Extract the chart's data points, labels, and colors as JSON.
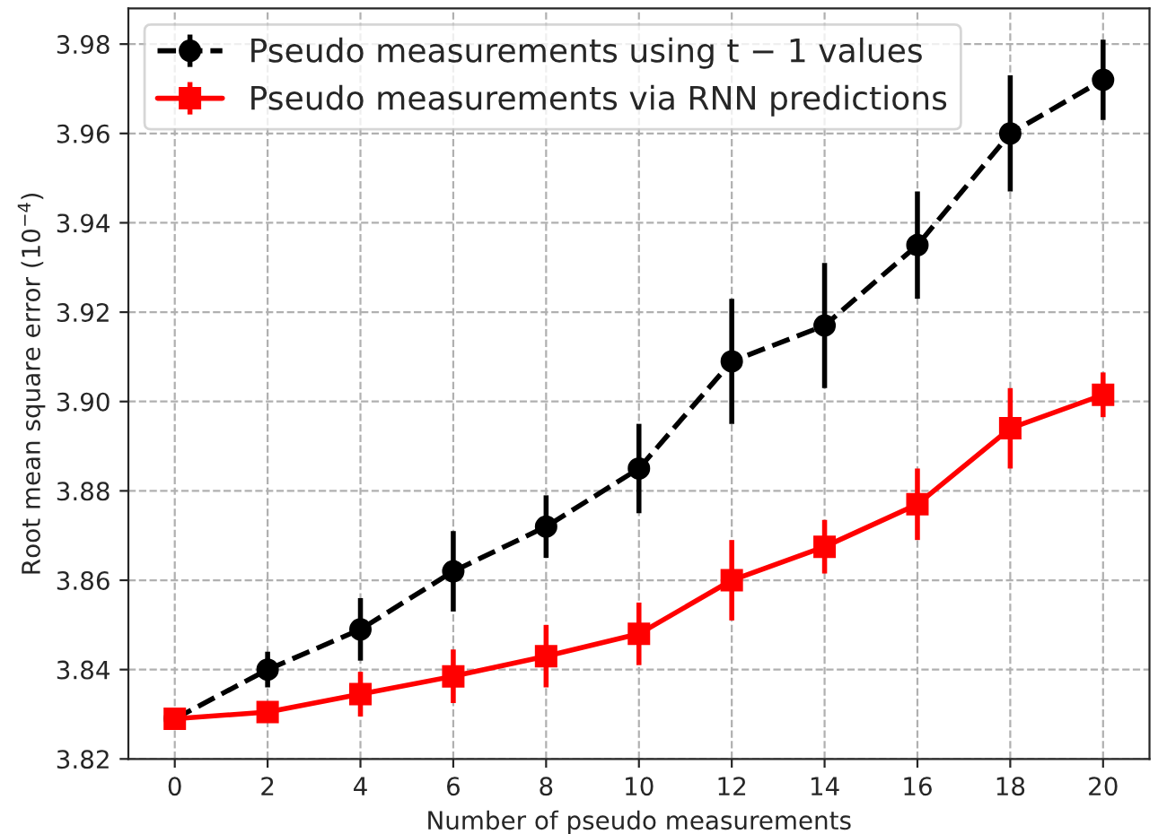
{
  "chart_data": {
    "type": "line",
    "xlabel": "Number of pseudo measurements",
    "ylabel": "Root mean square error (10$^{−4}$)",
    "x": [
      0,
      2,
      4,
      6,
      8,
      10,
      12,
      14,
      16,
      18,
      20
    ],
    "series": [
      {
        "name": "Pseudo measurements using t − 1 values",
        "color": "#000000",
        "marker": "circle",
        "line_style": "dashed",
        "values": [
          3.829,
          3.84,
          3.849,
          3.862,
          3.872,
          3.885,
          3.909,
          3.917,
          3.935,
          3.96,
          3.972
        ],
        "errors": [
          null,
          0.004,
          0.007,
          0.009,
          0.007,
          0.01,
          0.014,
          0.014,
          0.012,
          0.013,
          0.009
        ]
      },
      {
        "name": "Pseudo measurements via RNN predictions",
        "color": "#ff0000",
        "marker": "square",
        "line_style": "solid",
        "values": [
          3.829,
          3.8305,
          3.8345,
          3.8385,
          3.843,
          3.848,
          3.86,
          3.8675,
          3.877,
          3.894,
          3.9015
        ],
        "errors": [
          0.001,
          0.002,
          0.005,
          0.006,
          0.007,
          0.007,
          0.009,
          0.006,
          0.008,
          0.009,
          0.005
        ]
      }
    ],
    "xlim": [
      -1,
      21
    ],
    "xticks": [
      0,
      2,
      4,
      6,
      8,
      10,
      12,
      14,
      16,
      18,
      20
    ],
    "ylim": [
      3.82,
      3.988
    ],
    "yticks": [
      3.82,
      3.84,
      3.86,
      3.88,
      {
        "value": 3.9,
        "label": "3.90"
      },
      3.92,
      3.94,
      3.96,
      3.98
    ],
    "grid": true,
    "legend": "top left"
  }
}
